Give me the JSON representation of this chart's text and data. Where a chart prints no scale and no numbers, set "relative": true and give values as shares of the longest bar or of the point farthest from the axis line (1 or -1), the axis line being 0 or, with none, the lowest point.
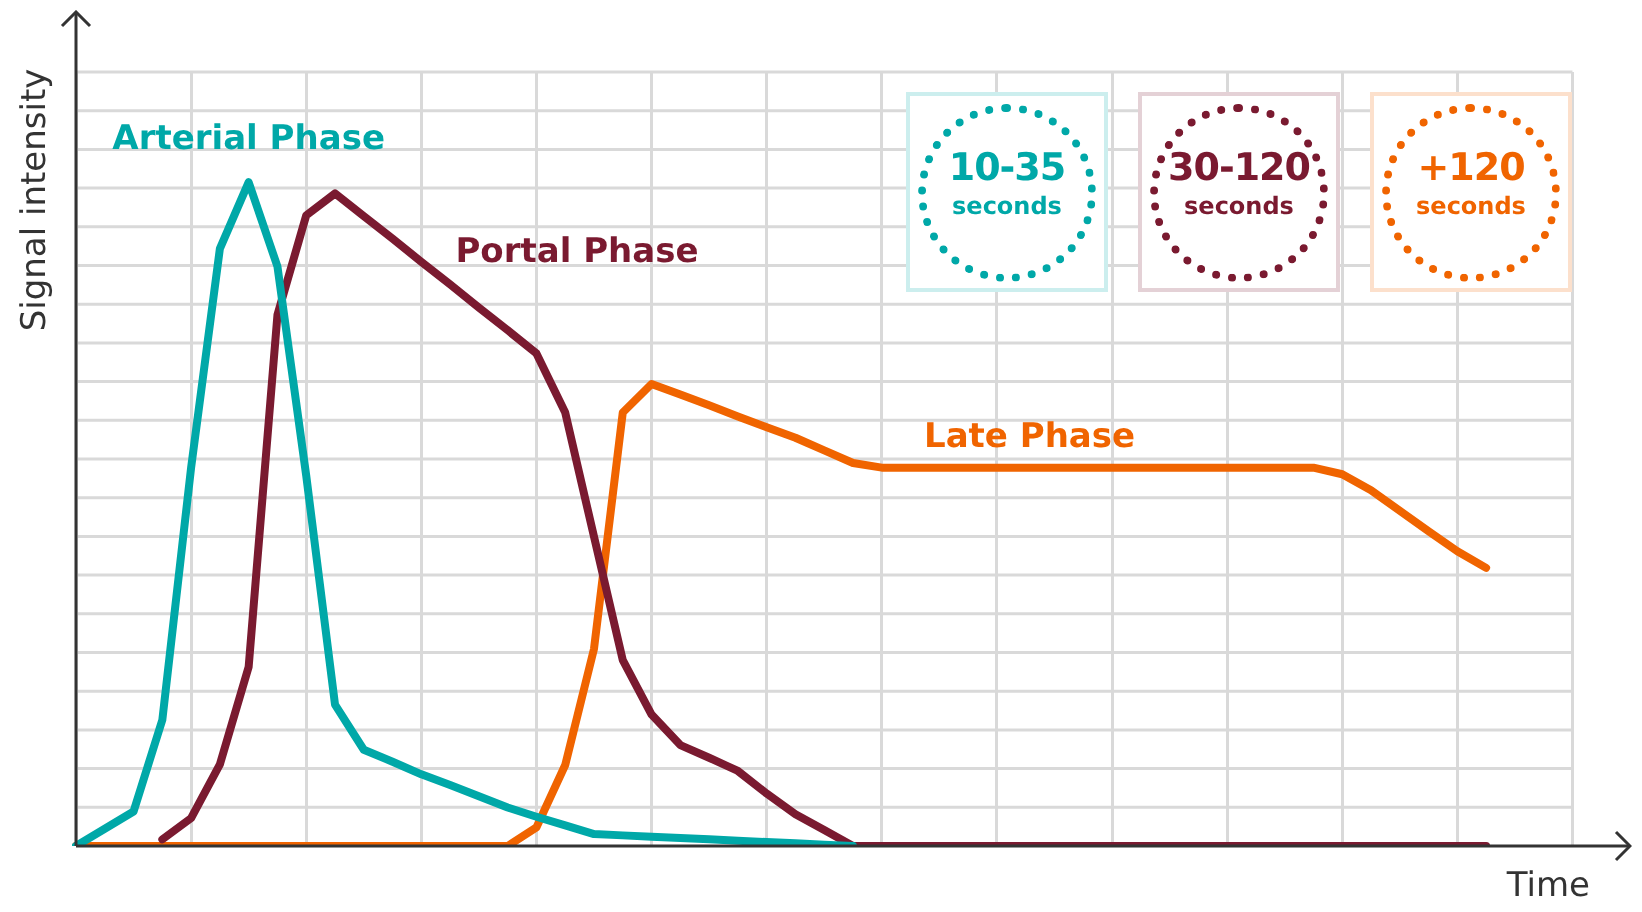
{
  "chart_data": {
    "type": "line",
    "relative": true,
    "xlabel": "Time",
    "ylabel": "Signal intensity",
    "categories": [
      null,
      null,
      null,
      null,
      null,
      null,
      null,
      null,
      null,
      null,
      null,
      null,
      null,
      null,
      null,
      null,
      null,
      null,
      null,
      null,
      null,
      null,
      null,
      null,
      null,
      null,
      null,
      null,
      null,
      null,
      null,
      null,
      null,
      null,
      null,
      null,
      null,
      null,
      null,
      null,
      null,
      null,
      null,
      null,
      null,
      null,
      null,
      null,
      null,
      null,
      null,
      null,
      null,
      null,
      null
    ],
    "tick_labels": false,
    "grid": true,
    "legend": false,
    "marker": "none",
    "line_style": "solid",
    "series": [
      {
        "name": "Arterial Phase",
        "color": "#00a8a8",
        "values": [
          0,
          0.026,
          0.052,
          0.19,
          0.57,
          0.9,
          1,
          0.873,
          0.558,
          0.213,
          0.145,
          0.127,
          0.108,
          0.092,
          0.075,
          0.058,
          0.044,
          0.031,
          0.018,
          0.016,
          0.014,
          0.012,
          0.01,
          0.008,
          0.006,
          0.004,
          0.002,
          0,
          null,
          null,
          null,
          null,
          null,
          null,
          null,
          null,
          null,
          null,
          null,
          null,
          null,
          null,
          null,
          null,
          null,
          null,
          null,
          null,
          null,
          null,
          null,
          null,
          null,
          null,
          null
        ]
      },
      {
        "name": "Portal Phase",
        "color": "#7a1a30",
        "values": [
          null,
          null,
          null,
          0.01,
          0.042,
          0.123,
          0.27,
          0.8,
          0.95,
          0.983,
          0.949,
          0.915,
          0.88,
          0.846,
          0.811,
          0.777,
          0.742,
          0.653,
          0.466,
          0.28,
          0.198,
          0.152,
          0.133,
          0.113,
          0.079,
          0.048,
          0.024,
          0,
          0,
          0,
          0,
          0,
          0,
          0,
          0,
          0,
          0,
          0,
          0,
          0,
          0,
          0,
          0,
          0,
          0,
          0,
          0,
          0,
          0,
          0,
          null,
          null,
          null,
          null,
          null
        ]
      },
      {
        "name": "Late Phase",
        "color": "#f06400",
        "values": [
          0,
          0,
          0,
          0,
          0,
          0,
          0,
          0,
          0,
          0,
          0,
          0,
          0,
          0,
          0,
          0,
          0.028,
          0.122,
          0.297,
          0.653,
          0.696,
          0.68,
          0.664,
          0.647,
          0.631,
          0.615,
          0.596,
          0.577,
          0.57,
          0.57,
          0.57,
          0.57,
          0.57,
          0.57,
          0.57,
          0.57,
          0.57,
          0.57,
          0.57,
          0.57,
          0.57,
          0.57,
          0.57,
          0.57,
          0.56,
          0.536,
          0.505,
          0.474,
          0.444,
          0.419,
          null,
          null,
          null,
          null,
          null
        ]
      }
    ],
    "annotations": [
      "10-35 seconds",
      "30-120 seconds",
      "+120 seconds"
    ]
  }
}
